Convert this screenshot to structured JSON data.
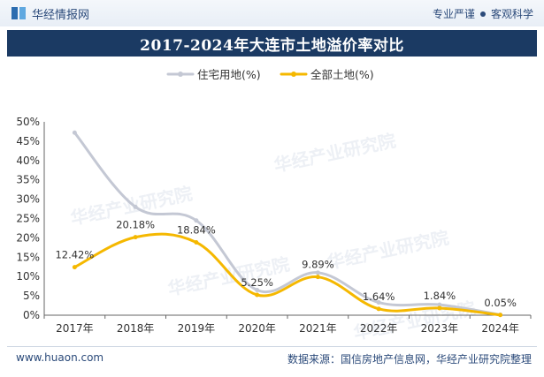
{
  "header": {
    "brand": "华经情报网",
    "tagline_left": "专业严谨",
    "tagline_right": "客观科学"
  },
  "footer": {
    "website": "www.huaon.com",
    "source": "数据来源：国信房地产信息网，华经产业研究院整理"
  },
  "watermark": "华经产业研究院",
  "chart_data": {
    "type": "line",
    "title": "2017-2024年大连市土地溢价率对比",
    "categories": [
      "2017年",
      "2018年",
      "2019年",
      "2020年",
      "2021年",
      "2022年",
      "2023年",
      "2024年"
    ],
    "ylim": [
      0,
      50
    ],
    "yticks": [
      "0%",
      "5%",
      "10%",
      "15%",
      "20%",
      "25%",
      "30%",
      "35%",
      "40%",
      "45%",
      "50%"
    ],
    "legend_position": "top-center",
    "series": [
      {
        "name": "住宅用地(%)",
        "color": "#c4c8d4",
        "values": [
          47.2,
          28.0,
          24.5,
          6.5,
          11.0,
          3.3,
          2.7,
          0.1
        ],
        "labels": [
          "",
          "",
          "",
          "",
          "",
          "",
          "",
          ""
        ]
      },
      {
        "name": "全部土地(%)",
        "color": "#f5b800",
        "values": [
          12.42,
          20.18,
          18.84,
          5.25,
          9.89,
          1.64,
          1.84,
          0.05
        ],
        "labels": [
          "12.42%",
          "20.18%",
          "18.84%",
          "5.25%",
          "9.89%",
          "1.64%",
          "1.84%",
          "0.05%"
        ]
      }
    ]
  }
}
